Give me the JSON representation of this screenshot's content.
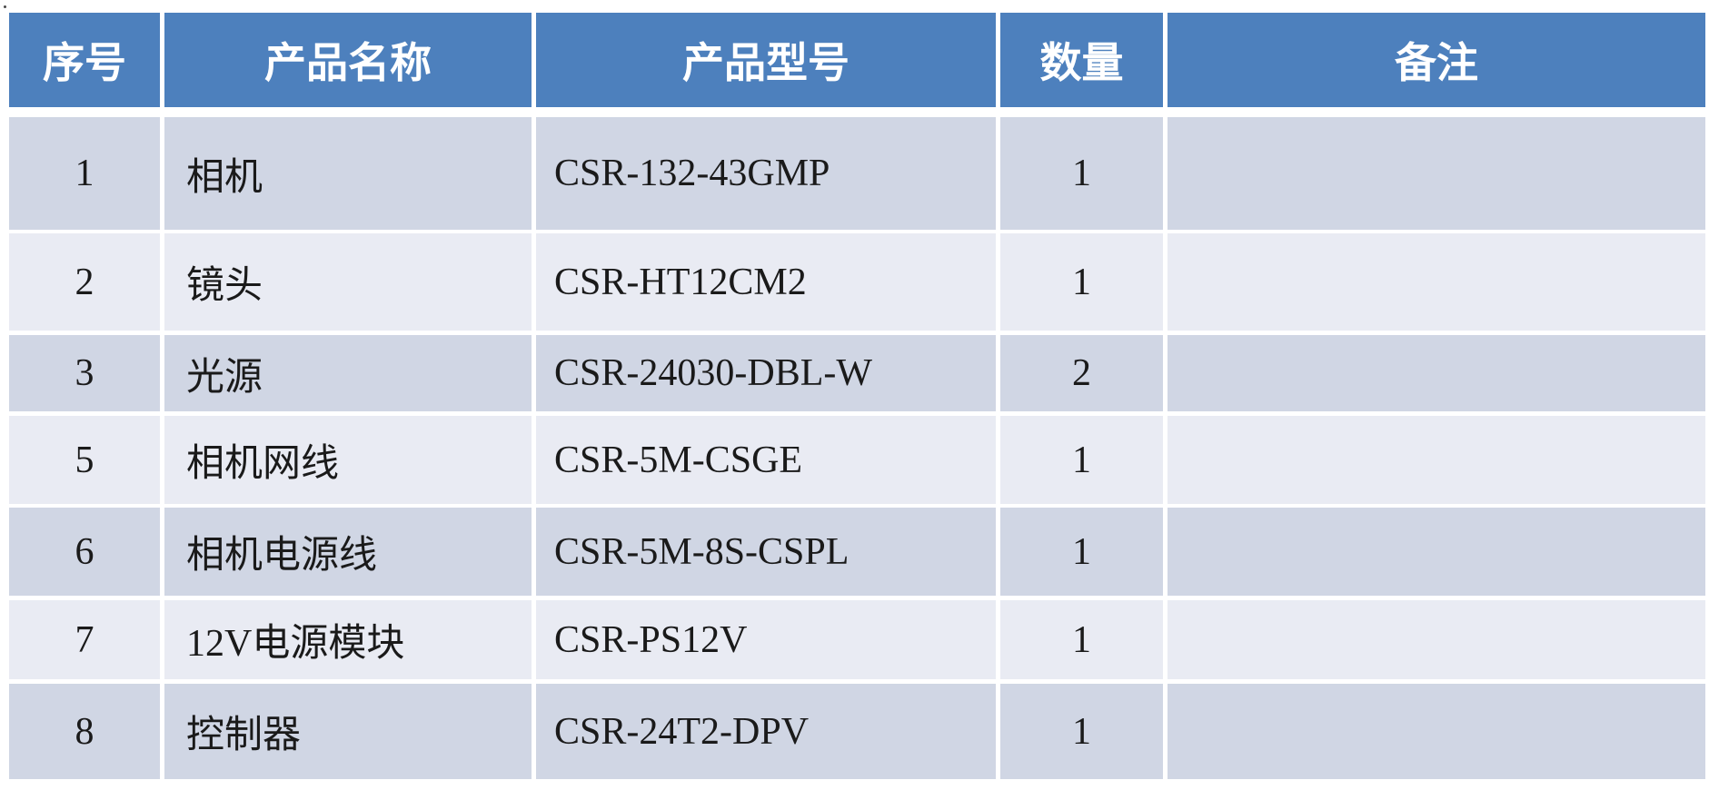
{
  "table": {
    "columns": [
      {
        "label": "序号"
      },
      {
        "label": "产品名称"
      },
      {
        "label": "产品型号"
      },
      {
        "label": "数量"
      },
      {
        "label": "备注"
      }
    ],
    "rows": [
      {
        "no": "1",
        "name": "相机",
        "model": "CSR-132-43GMP",
        "qty": "1",
        "note": ""
      },
      {
        "no": "2",
        "name": "镜头",
        "model": "CSR-HT12CM2",
        "qty": "1",
        "note": ""
      },
      {
        "no": "3",
        "name": "光源",
        "model": "CSR-24030-DBL-W",
        "qty": "2",
        "note": ""
      },
      {
        "no": "5",
        "name": "相机网线",
        "model": "CSR-5M-CSGE",
        "qty": "1",
        "note": ""
      },
      {
        "no": "6",
        "name": "相机电源线",
        "model": "CSR-5M-8S-CSPL",
        "qty": "1",
        "note": ""
      },
      {
        "no": "7",
        "name": "12V电源模块",
        "model": "CSR-PS12V",
        "qty": "1",
        "note": ""
      },
      {
        "no": "8",
        "name": "控制器",
        "model": "CSR-24T2-DPV",
        "qty": "1",
        "note": ""
      }
    ]
  },
  "colors": {
    "header_bg": "#4D80BD",
    "header_text": "#FFFFFF",
    "band_dark": "#D0D6E4",
    "band_light": "#E9EBF3",
    "body_text": "#1A1A1A",
    "page_bg": "#FFFFFF"
  }
}
